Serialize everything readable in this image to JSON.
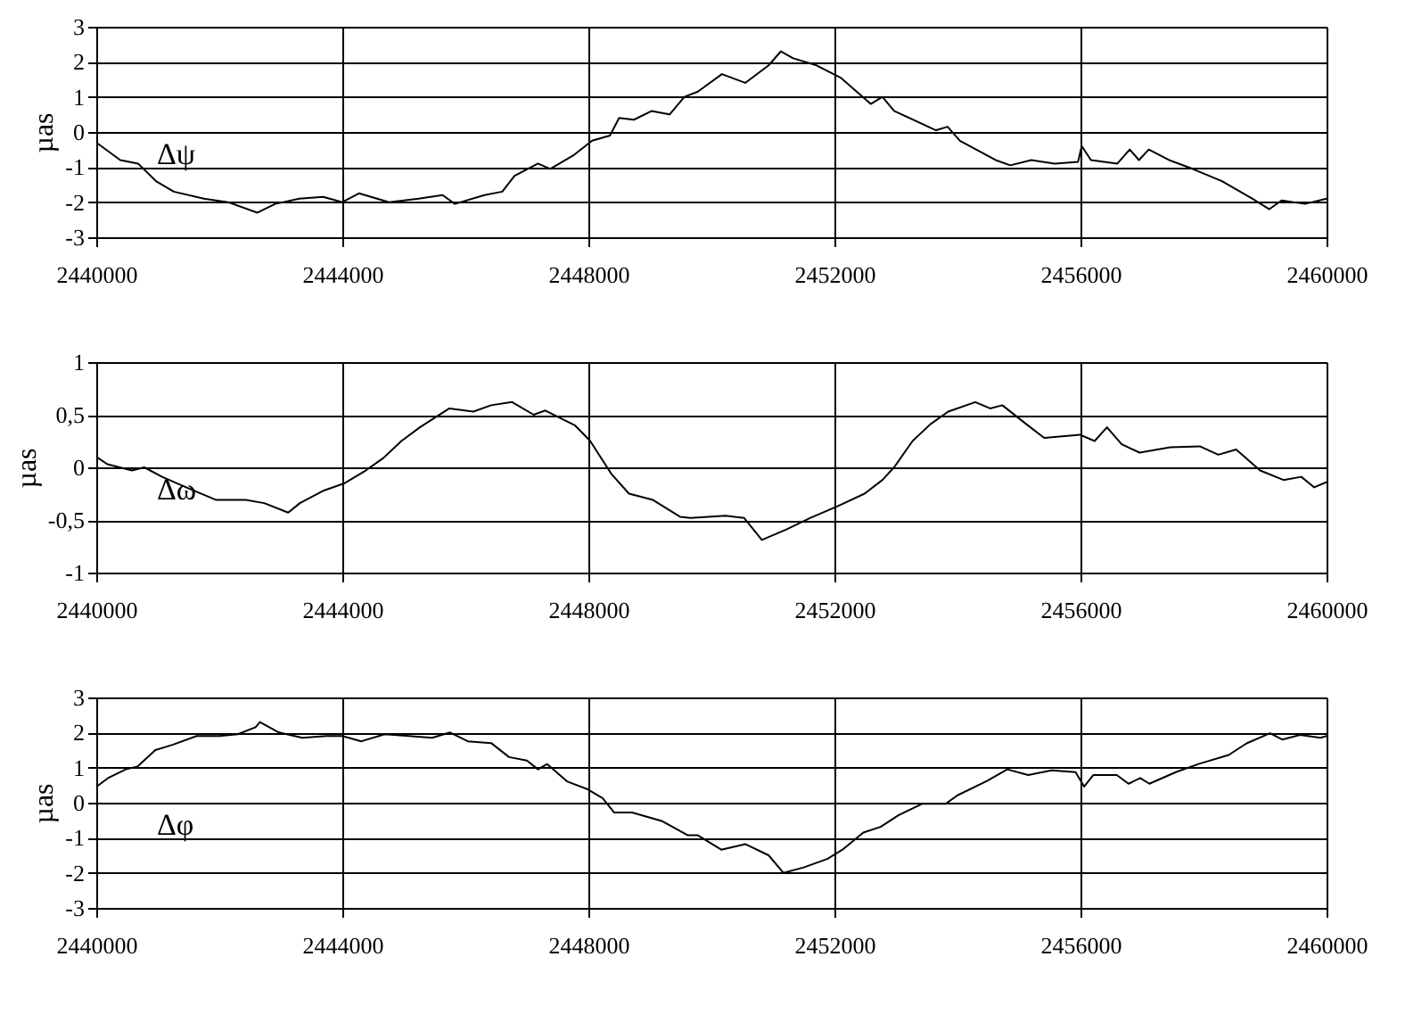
{
  "chart_data": [
    {
      "type": "line",
      "ylabel": "µas",
      "xlim": [
        2440000,
        2460000
      ],
      "xticks": [
        2440000,
        2444000,
        2448000,
        2452000,
        2456000,
        2460000
      ],
      "ylim": [
        -3,
        3
      ],
      "yticks": [
        -3,
        -2,
        -1,
        0,
        1,
        2,
        3
      ],
      "grid": true,
      "x": [
        2440000,
        2440390,
        2440680,
        2440970,
        2441260,
        2441750,
        2442140,
        2442620,
        2442910,
        2443300,
        2443690,
        2444000,
        2444270,
        2444760,
        2445240,
        2445630,
        2445830,
        2446310,
        2446600,
        2446800,
        2447180,
        2447380,
        2447770,
        2448060,
        2448350,
        2448500,
        2448740,
        2449030,
        2449320,
        2449560,
        2449780,
        2450170,
        2450550,
        2450930,
        2451130,
        2451330,
        2451710,
        2452100,
        2452590,
        2452780,
        2452970,
        2453650,
        2453840,
        2454040,
        2454620,
        2454860,
        2455200,
        2455580,
        2455960,
        2456020,
        2456170,
        2456600,
        2456800,
        2456950,
        2457110,
        2457440,
        2457820,
        2458300,
        2458790,
        2459070,
        2459270,
        2459650,
        2460000
      ],
      "series": [
        {
          "name": "Δψ",
          "color": "#000000",
          "values": [
            -0.3,
            -0.8,
            -0.9,
            -1.4,
            -1.7,
            -1.9,
            -2.0,
            -2.3,
            -2.05,
            -1.9,
            -1.85,
            -2.0,
            -1.75,
            -2.0,
            -1.9,
            -1.8,
            -2.05,
            -1.8,
            -1.7,
            -1.25,
            -0.9,
            -1.05,
            -0.65,
            -0.25,
            -0.1,
            0.4,
            0.35,
            0.6,
            0.5,
            1.0,
            1.15,
            1.65,
            1.4,
            1.9,
            2.3,
            2.1,
            1.9,
            1.55,
            0.8,
            1.0,
            0.6,
            0.05,
            0.15,
            -0.25,
            -0.8,
            -0.95,
            -0.8,
            -0.9,
            -0.85,
            -0.4,
            -0.8,
            -0.9,
            -0.5,
            -0.8,
            -0.5,
            -0.8,
            -1.05,
            -1.4,
            -1.9,
            -2.2,
            -1.95,
            -2.05,
            -1.9
          ]
        }
      ]
    },
    {
      "type": "line",
      "ylabel": "µas",
      "xlim": [
        2440000,
        2460000
      ],
      "xticks": [
        2440000,
        2444000,
        2448000,
        2452000,
        2456000,
        2460000
      ],
      "ylim": [
        -1,
        1
      ],
      "yticks": [
        -1,
        {
          "value": -0.5,
          "label": "-0,5"
        },
        0,
        {
          "value": 0.5,
          "label": "0,5"
        },
        1
      ],
      "grid": true,
      "x": [
        2440000,
        2440180,
        2440580,
        2440780,
        2441070,
        2441460,
        2441950,
        2442430,
        2442730,
        2443120,
        2443310,
        2443700,
        2444040,
        2444380,
        2444670,
        2444960,
        2445260,
        2445740,
        2446130,
        2446420,
        2446760,
        2447110,
        2447300,
        2447780,
        2448030,
        2448370,
        2448660,
        2449050,
        2449490,
        2449660,
        2450230,
        2450530,
        2450820,
        2451220,
        2451610,
        2452050,
        2452490,
        2452780,
        2452970,
        2453270,
        2453560,
        2453850,
        2454290,
        2454530,
        2454730,
        2455120,
        2455410,
        2455990,
        2456230,
        2456430,
        2456670,
        2456960,
        2457460,
        2457940,
        2458240,
        2458530,
        2458920,
        2459300,
        2459590,
        2459800,
        2460000
      ],
      "series": [
        {
          "name": "Δω",
          "color": "#000000",
          "values": [
            0.1,
            0.03,
            -0.03,
            0,
            -0.09,
            -0.19,
            -0.31,
            -0.31,
            -0.34,
            -0.43,
            -0.34,
            -0.22,
            -0.15,
            -0.03,
            0.09,
            0.25,
            0.38,
            0.56,
            0.53,
            0.59,
            0.62,
            0.5,
            0.54,
            0.4,
            0.25,
            -0.06,
            -0.25,
            -0.31,
            -0.47,
            -0.48,
            -0.46,
            -0.48,
            -0.69,
            -0.59,
            -0.48,
            -0.37,
            -0.25,
            -0.12,
            0,
            0.25,
            0.41,
            0.53,
            0.62,
            0.56,
            0.59,
            0.41,
            0.28,
            0.31,
            0.25,
            0.38,
            0.22,
            0.14,
            0.19,
            0.2,
            0.12,
            0.17,
            -0.03,
            -0.12,
            -0.09,
            -0.19,
            -0.14
          ]
        }
      ]
    },
    {
      "type": "line",
      "ylabel": "µas",
      "xlim": [
        2440000,
        2460000
      ],
      "xticks": [
        2440000,
        2444000,
        2448000,
        2452000,
        2456000,
        2460000
      ],
      "ylim": [
        -3,
        3
      ],
      "yticks": [
        -3,
        -2,
        -1,
        0,
        1,
        2,
        3
      ],
      "grid": true,
      "x": [
        2440000,
        2440190,
        2440480,
        2440670,
        2440960,
        2441240,
        2441630,
        2442010,
        2442300,
        2442590,
        2442660,
        2442970,
        2443350,
        2443740,
        2444000,
        2444310,
        2444690,
        2445080,
        2445460,
        2445750,
        2446040,
        2446420,
        2446710,
        2447000,
        2447180,
        2447330,
        2447660,
        2447990,
        2448230,
        2448420,
        2448710,
        2449190,
        2449620,
        2449780,
        2450160,
        2450550,
        2450930,
        2451170,
        2451510,
        2451890,
        2452130,
        2452470,
        2452750,
        2453040,
        2453430,
        2453810,
        2454000,
        2454480,
        2454810,
        2455150,
        2455530,
        2455920,
        2456060,
        2456210,
        2456590,
        2456780,
        2456970,
        2457120,
        2457550,
        2457930,
        2458410,
        2458700,
        2459080,
        2459280,
        2459570,
        2459900,
        2460000
      ],
      "series": [
        {
          "name": "Δφ",
          "color": "#000000",
          "values": [
            0.45,
            0.7,
            0.95,
            1.03,
            1.5,
            1.65,
            1.9,
            1.9,
            1.95,
            2.15,
            2.3,
            2.0,
            1.85,
            1.9,
            1.9,
            1.75,
            1.95,
            1.9,
            1.85,
            2.0,
            1.75,
            1.7,
            1.3,
            1.2,
            0.95,
            1.1,
            0.6,
            0.38,
            0.13,
            -0.28,
            -0.28,
            -0.52,
            -0.93,
            -0.93,
            -1.34,
            -1.18,
            -1.5,
            -2.0,
            -1.84,
            -1.6,
            -1.34,
            -0.85,
            -0.69,
            -0.36,
            -0.03,
            -0.03,
            0.21,
            0.62,
            0.95,
            0.79,
            0.92,
            0.87,
            0.46,
            0.79,
            0.79,
            0.54,
            0.7,
            0.54,
            0.87,
            1.11,
            1.36,
            1.69,
            1.98,
            1.8,
            1.93,
            1.85,
            1.9
          ]
        }
      ]
    }
  ]
}
